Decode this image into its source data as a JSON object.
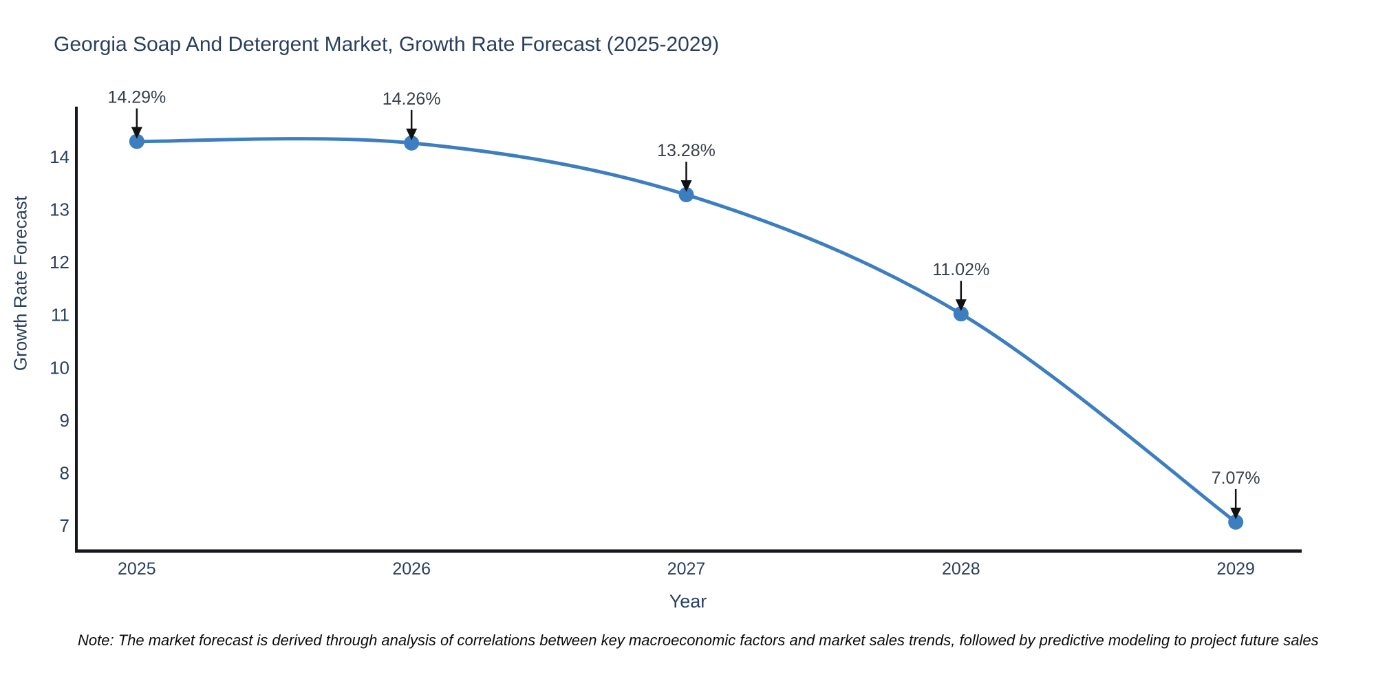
{
  "note": "Note: The market forecast is derived through analysis of correlations between key macroeconomic factors and market sales trends, followed by predictive modeling to project future sales",
  "colors": {
    "accent_line": "#3C7EBF",
    "marker_fill": "#3C7EBF",
    "title_text": "#2a3f5f",
    "axis_text": "#2a3f5f",
    "annotation_text": "#383f47",
    "axis_line": "#16181d",
    "arrow": "#111111",
    "note_text": "#0c0c0c",
    "background": "#ffffff"
  },
  "chart_data": {
    "type": "line",
    "title": "Georgia Soap And Detergent Market, Growth Rate Forecast (2025-2029)",
    "xlabel": "Year",
    "ylabel": "Growth Rate Forecast",
    "x": [
      2025,
      2026,
      2027,
      2028,
      2029
    ],
    "y": [
      14.29,
      14.26,
      13.28,
      11.02,
      7.07
    ],
    "point_labels": [
      "14.29%",
      "14.26%",
      "13.28%",
      "11.02%",
      "7.07%"
    ],
    "series_name": "Growth Rate Forecast",
    "xticks": [
      2025,
      2026,
      2027,
      2028,
      2029
    ],
    "yticks": [
      7,
      8,
      9,
      10,
      11,
      12,
      13,
      14
    ],
    "xlim": [
      2024.78,
      2029.24
    ],
    "ylim": [
      6.52,
      14.95
    ],
    "grid": false,
    "legend": false,
    "smooth": true,
    "markers": true,
    "annotation_arrows": true
  }
}
